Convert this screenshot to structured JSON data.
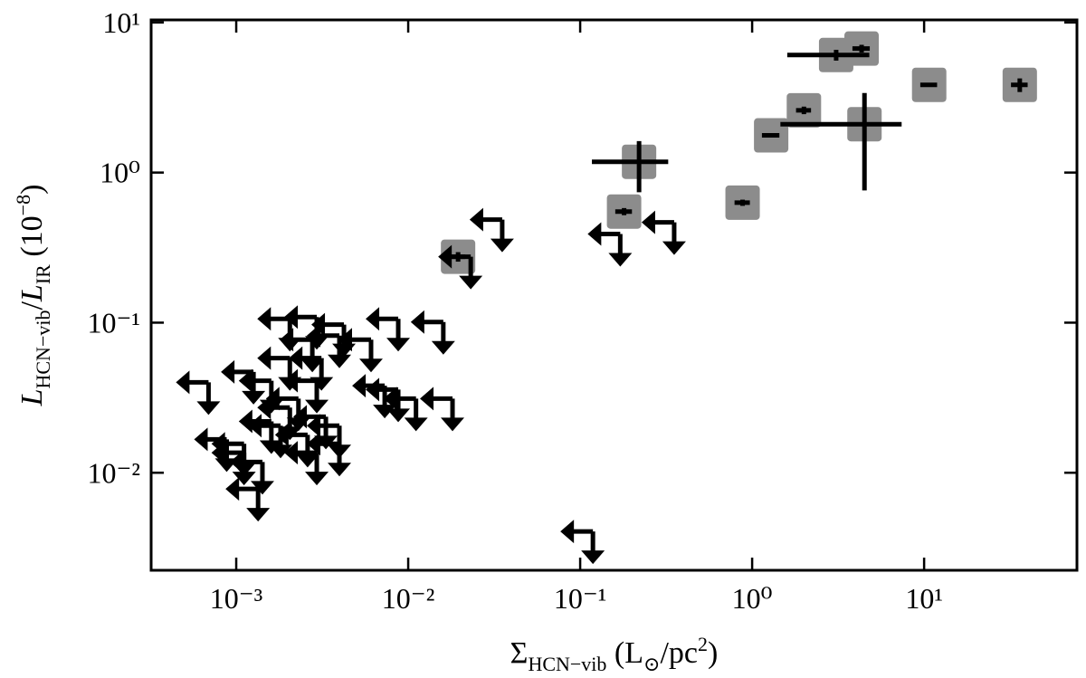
{
  "chart_data": {
    "type": "scatter",
    "xlabel": [
      {
        "text": "Σ",
        "shift": "normal",
        "italic": false
      },
      {
        "text": "HCN−vib",
        "shift": "sub",
        "italic": false
      },
      {
        "text": " (L",
        "shift": "normal",
        "italic": false
      },
      {
        "text": "⊙",
        "shift": "sub",
        "italic": false
      },
      {
        "text": "/pc",
        "shift": "normal",
        "italic": false
      },
      {
        "text": "2",
        "shift": "super",
        "italic": false
      },
      {
        "text": ")",
        "shift": "normal",
        "italic": false
      }
    ],
    "ylabel": [
      {
        "text": "L",
        "shift": "normal",
        "italic": true
      },
      {
        "text": "HCN−vib",
        "shift": "sub",
        "italic": false
      },
      {
        "text": "/",
        "shift": "normal",
        "italic": false
      },
      {
        "text": "L",
        "shift": "normal",
        "italic": true
      },
      {
        "text": "IR",
        "shift": "sub",
        "italic": false
      },
      {
        "text": " (10",
        "shift": "normal",
        "italic": false
      },
      {
        "text": "−8",
        "shift": "super",
        "italic": false
      },
      {
        "text": ")",
        "shift": "normal",
        "italic": false
      }
    ],
    "xscale": "log",
    "yscale": "log",
    "xlim": [
      0.00032,
      77.4
    ],
    "ylim": [
      0.00224,
      10.4
    ],
    "xticks": [
      {
        "value": 0.001,
        "label": "10⁻³"
      },
      {
        "value": 0.01,
        "label": "10⁻²"
      },
      {
        "value": 0.1,
        "label": "10⁻¹"
      },
      {
        "value": 1,
        "label": "10⁰"
      },
      {
        "value": 10,
        "label": "10¹"
      }
    ],
    "yticks": [
      {
        "value": 0.01,
        "label": "10⁻²"
      },
      {
        "value": 0.1,
        "label": "10⁻¹"
      },
      {
        "value": 1,
        "label": "10⁰"
      },
      {
        "value": 10,
        "label": "10¹"
      }
    ],
    "color": "#000000",
    "marker_color": "#8c8c8c",
    "detections": {
      "x": [
        0.0195,
        0.18,
        0.22,
        0.88,
        1.29,
        2.0,
        4.5,
        3.08,
        4.33,
        10.7,
        36
      ],
      "y": [
        0.275,
        0.55,
        1.18,
        0.63,
        1.77,
        2.6,
        2.1,
        6.07,
        6.7,
        3.84,
        3.84
      ],
      "xerr": [
        [
          0.002,
          0.002
        ],
        [
          0.02,
          0.02
        ],
        [
          0.103,
          0.105
        ],
        [
          0.09,
          0.09
        ],
        [
          0.15,
          0.15
        ],
        [
          0.2,
          0.2
        ],
        [
          3.04,
          2.9
        ],
        [
          1.48,
          1.72
        ],
        [
          0.5,
          0.5
        ],
        [
          1.2,
          1.2
        ],
        [
          4,
          4
        ]
      ],
      "yerr": [
        [
          0.02,
          0.02
        ],
        [
          0.03,
          0.03
        ],
        [
          0.44,
          0.44
        ],
        [
          0.03,
          0.03
        ],
        [
          0.02,
          0.02
        ],
        [
          0.15,
          0.15
        ],
        [
          1.34,
          1.29
        ],
        [
          0.5,
          0.5
        ],
        [
          0.4,
          0.4
        ],
        [
          0.1,
          0.1
        ],
        [
          0.4,
          0.4
        ]
      ]
    },
    "upper_limits": {
      "x": [
        0.00069,
        0.171,
        0.0352,
        0.0231,
        0.352,
        0.1186,
        0.00205,
        0.00294,
        0.00423,
        0.00608,
        0.00875,
        0.016,
        0.00277,
        0.00398,
        0.00205,
        0.00126,
        0.0016,
        0.0073,
        0.00875,
        0.0111,
        0.0181,
        0.00313,
        0.00294,
        0.0023,
        0.00205,
        0.00332,
        0.00398,
        0.00181,
        0.00088,
        0.00111,
        0.00142,
        0.00294,
        0.00398,
        0.00134,
        0.0016,
        0.0026,
        0.00111
      ],
      "y": [
        0.04,
        0.39,
        0.486,
        0.275,
        0.466,
        0.00406,
        0.106,
        0.109,
        0.097,
        0.077,
        0.106,
        0.101,
        0.077,
        0.082,
        0.058,
        0.047,
        0.041,
        0.038,
        0.0358,
        0.0312,
        0.0312,
        0.058,
        0.041,
        0.0312,
        0.0272,
        0.0236,
        0.0206,
        0.0206,
        0.0167,
        0.0156,
        0.0118,
        0.0136,
        0.0156,
        0.0078,
        0.022,
        0.0179,
        0.0136
      ]
    }
  }
}
